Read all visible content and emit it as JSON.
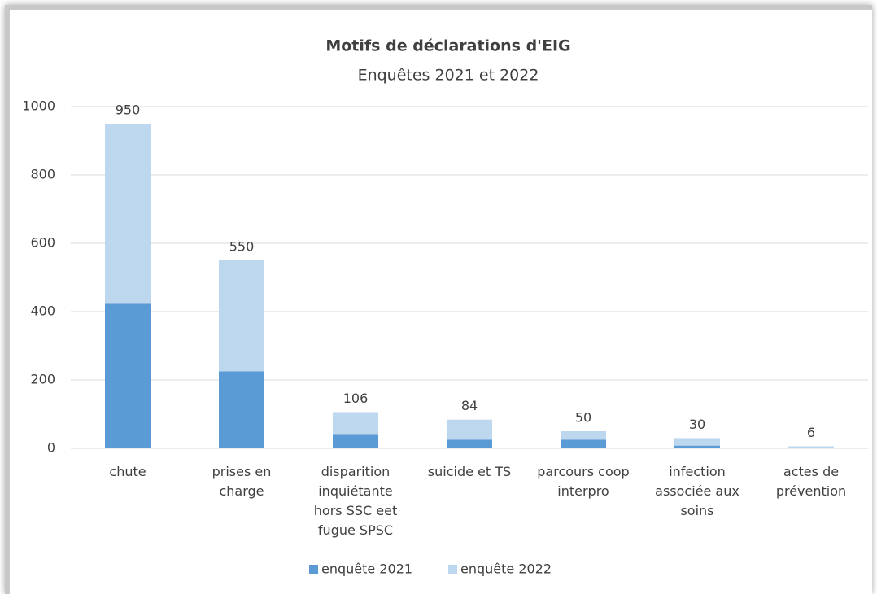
{
  "chart_data": {
    "type": "stacked_bar",
    "title": "Motifs de déclarations d'EIG",
    "subtitle": "Enquêtes 2021 et 2022",
    "categories": [
      "chute",
      "prises en\ncharge",
      "disparition\ninquiétante\nhors SSC eet\nfugue SPSC",
      "suicide et TS",
      "parcours coop\ninterpro",
      "infection\nassociée aux\nsoins",
      "actes de\nprévention"
    ],
    "series": [
      {
        "name": "enquête 2021",
        "color": "#5b9bd5",
        "values": [
          425,
          225,
          42,
          25,
          25,
          8,
          2
        ]
      },
      {
        "name": "enquête 2022",
        "color": "#bdd7ee",
        "values": [
          525,
          325,
          64,
          59,
          25,
          22,
          4
        ]
      }
    ],
    "totals": [
      950,
      550,
      106,
      84,
      50,
      30,
      6
    ],
    "ylim": [
      0,
      1000
    ],
    "yticks": [
      0,
      200,
      400,
      600,
      800,
      1000
    ],
    "grid": true,
    "legend": "bottom"
  }
}
